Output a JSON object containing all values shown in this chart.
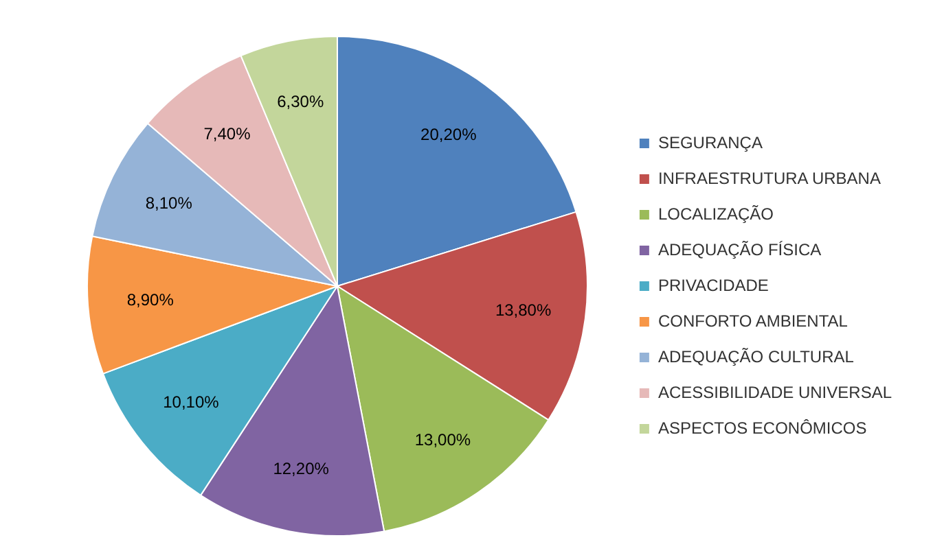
{
  "chart_data": {
    "type": "pie",
    "categories": [
      "SEGURANÇA",
      "INFRAESTRUTURA URBANA",
      "LOCALIZAÇÃO",
      "ADEQUAÇÃO FÍSICA",
      "PRIVACIDADE",
      "CONFORTO AMBIENTAL",
      "ADEQUAÇÃO CULTURAL",
      "ACESSIBILIDADE UNIVERSAL",
      "ASPECTOS ECONÔMICOS"
    ],
    "values": [
      20.2,
      13.8,
      13.0,
      12.2,
      10.1,
      8.9,
      8.1,
      7.4,
      6.3
    ],
    "value_labels": [
      "20,20%",
      "13,80%",
      "13,00%",
      "12,20%",
      "10,10%",
      "8,90%",
      "8,10%",
      "7,40%",
      "6,30%"
    ],
    "colors": [
      "#4f81bd",
      "#c0504d",
      "#9bbb59",
      "#8064a2",
      "#4bacc6",
      "#f79646",
      "#95b3d7",
      "#e6b9b8",
      "#c3d69b"
    ],
    "legend": "right"
  }
}
